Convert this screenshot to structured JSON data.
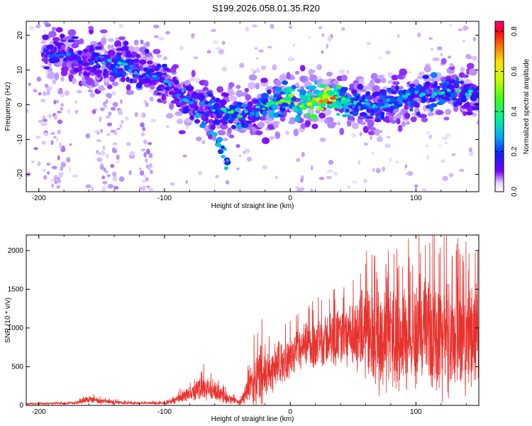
{
  "figure_title": "S199.2026.058.01.35.R20",
  "colors": {
    "snr_line": "#e8322e",
    "axis": "#000000",
    "background": "#ffffff"
  },
  "chart_data": [
    {
      "type": "heatmap",
      "name": "spectrogram",
      "xlabel": "Height of straight line (km)",
      "ylabel": "Frequency (Hz)",
      "xlim": [
        -210,
        150
      ],
      "ylim": [
        -25,
        24
      ],
      "xticks": [
        -200,
        -100,
        0,
        100
      ],
      "yticks": [
        -20,
        -10,
        0,
        10,
        20
      ],
      "colorbar": {
        "label": "Normalized spectral amplitude",
        "range": [
          0.0,
          0.85
        ],
        "ticks": [
          0.0,
          0.2,
          0.4,
          0.6,
          0.8
        ],
        "tick_labels": [
          "0.0",
          "0.2",
          "0.4",
          "0.6",
          "0.8"
        ],
        "colormap": "rainbow"
      },
      "ridge": {
        "x": [
          -195,
          -180,
          -165,
          -150,
          -140,
          -130,
          -120,
          -110,
          -100,
          -90,
          -80,
          -70,
          -60,
          -50,
          -40,
          -30,
          -20,
          -10,
          0,
          10,
          20,
          30,
          40,
          50,
          60,
          70,
          80,
          90,
          100,
          110,
          120,
          130,
          140,
          150
        ],
        "frequency_hz": [
          15,
          15,
          12,
          12,
          12,
          12,
          10,
          9,
          7,
          3,
          1,
          0,
          -1,
          -2,
          -3,
          -2,
          0,
          1,
          1,
          1,
          2,
          2,
          1,
          0,
          0,
          0,
          1,
          2,
          3,
          3,
          4,
          4,
          3,
          2
        ],
        "peak_amplitude": [
          0.25,
          0.3,
          0.25,
          0.3,
          0.35,
          0.35,
          0.3,
          0.3,
          0.3,
          0.3,
          0.3,
          0.3,
          0.35,
          0.4,
          0.45,
          0.35,
          0.45,
          0.5,
          0.55,
          0.6,
          0.7,
          0.8,
          0.55,
          0.4,
          0.35,
          0.35,
          0.35,
          0.4,
          0.35,
          0.35,
          0.4,
          0.4,
          0.35,
          0.3
        ]
      },
      "descending_branch": {
        "x": [
          -75,
          -68,
          -62,
          -57,
          -53,
          -50
        ],
        "frequency_hz": [
          -2,
          -5,
          -8,
          -11,
          -13,
          -16
        ]
      }
    },
    {
      "type": "line",
      "name": "snr",
      "xlabel": "Height of straight line (km)",
      "ylabel": "SNR (10 * v/v)",
      "xlim": [
        -210,
        150
      ],
      "ylim": [
        0,
        2200
      ],
      "xticks": [
        -200,
        -100,
        0,
        100
      ],
      "yticks": [
        0,
        500,
        1000,
        1500,
        2000
      ],
      "envelope": {
        "x": [
          -210,
          -170,
          -160,
          -150,
          -130,
          -100,
          -90,
          -80,
          -70,
          -60,
          -50,
          -40,
          -30,
          -25,
          -20,
          -10,
          0,
          10,
          20,
          30,
          40,
          50,
          60,
          70,
          80,
          90,
          100,
          110,
          120,
          130,
          140,
          150
        ],
        "mean": [
          20,
          30,
          80,
          50,
          30,
          30,
          80,
          150,
          230,
          180,
          90,
          40,
          300,
          380,
          400,
          500,
          620,
          720,
          800,
          850,
          870,
          880,
          900,
          900,
          900,
          880,
          900,
          950,
          920,
          900,
          880,
          870
        ],
        "spread": [
          10,
          20,
          60,
          40,
          20,
          20,
          70,
          120,
          220,
          150,
          80,
          40,
          300,
          600,
          350,
          300,
          300,
          350,
          400,
          400,
          450,
          500,
          700,
          800,
          800,
          800,
          850,
          900,
          900,
          850,
          800,
          800
        ]
      }
    }
  ]
}
